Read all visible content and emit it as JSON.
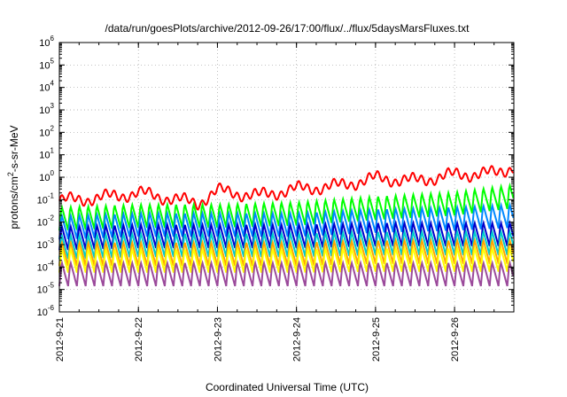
{
  "chart_data": {
    "type": "line",
    "title": "/data/run/goesPlots/archive/2012-09-26/17:00/flux/../flux/5daysMarsFluxes.txt",
    "xlabel": "Coordinated Universal Time (UTC)",
    "ylabel": {
      "pre": "protons/cm",
      "sup": "2",
      "post": "-s-sr-MeV"
    },
    "yscale": "log",
    "ylim": [
      1e-06,
      1000000.0
    ],
    "y_ticks": [
      {
        "exp": "-6"
      },
      {
        "exp": "-5"
      },
      {
        "exp": "-4"
      },
      {
        "exp": "-3"
      },
      {
        "exp": "-2"
      },
      {
        "exp": "-1"
      },
      {
        "exp": "0"
      },
      {
        "exp": "1"
      },
      {
        "exp": "2"
      },
      {
        "exp": "3"
      },
      {
        "exp": "4"
      },
      {
        "exp": "5"
      },
      {
        "exp": "6"
      }
    ],
    "y_tick_base": "10",
    "xlim": [
      "2012-09-21T00:00",
      "2012-09-26T18:00"
    ],
    "x_ticks": [
      "2012-9-21",
      "2012-9-22",
      "2012-9-23",
      "2012-9-24",
      "2012-9-25",
      "2012-9-26"
    ],
    "grid": true,
    "legend": "none",
    "sawtooth_cycles_per_day": 9,
    "series": [
      {
        "color": "#ff0000",
        "values": [
          {
            "x": "2012-09-21T00:00",
            "y": 0.09
          },
          {
            "x": "2012-09-21T12:00",
            "y": 0.12
          },
          {
            "x": "2012-09-22T00:00",
            "y": 0.2
          },
          {
            "x": "2012-09-22T12:00",
            "y": 0.1
          },
          {
            "x": "2012-09-22T18:00",
            "y": 0.07
          },
          {
            "x": "2012-09-23T00:00",
            "y": 0.25
          },
          {
            "x": "2012-09-23T12:00",
            "y": 0.15
          },
          {
            "x": "2012-09-24T00:00",
            "y": 0.3
          },
          {
            "x": "2012-09-24T12:00",
            "y": 0.4
          },
          {
            "x": "2012-09-25T00:00",
            "y": 0.9
          },
          {
            "x": "2012-09-25T12:00",
            "y": 0.7
          },
          {
            "x": "2012-09-26T00:00",
            "y": 1.3
          },
          {
            "x": "2012-09-26T12:00",
            "y": 1.5
          },
          {
            "x": "2012-09-26T18:00",
            "y": 3.0
          }
        ]
      },
      {
        "color": "#00ff00",
        "values": [
          {
            "x": "2012-09-21T00:00",
            "y": 0.015
          },
          {
            "x": "2012-09-22T00:00",
            "y": 0.02
          },
          {
            "x": "2012-09-23T00:00",
            "y": 0.02
          },
          {
            "x": "2012-09-24T00:00",
            "y": 0.025
          },
          {
            "x": "2012-09-25T00:00",
            "y": 0.045
          },
          {
            "x": "2012-09-26T00:00",
            "y": 0.07
          },
          {
            "x": "2012-09-26T18:00",
            "y": 0.15
          }
        ]
      },
      {
        "color": "#0088ff",
        "values": [
          {
            "x": "2012-09-21T00:00",
            "y": 0.006
          },
          {
            "x": "2012-09-22T00:00",
            "y": 0.008
          },
          {
            "x": "2012-09-23T00:00",
            "y": 0.008
          },
          {
            "x": "2012-09-24T00:00",
            "y": 0.008
          },
          {
            "x": "2012-09-25T00:00",
            "y": 0.012
          },
          {
            "x": "2012-09-26T00:00",
            "y": 0.015
          },
          {
            "x": "2012-09-26T18:00",
            "y": 0.02
          }
        ]
      },
      {
        "color": "#0000cc",
        "values": [
          {
            "x": "2012-09-21T00:00",
            "y": 0.002
          },
          {
            "x": "2012-09-22T00:00",
            "y": 0.0025
          },
          {
            "x": "2012-09-23T00:00",
            "y": 0.0025
          },
          {
            "x": "2012-09-24T00:00",
            "y": 0.0025
          },
          {
            "x": "2012-09-25T00:00",
            "y": 0.003
          },
          {
            "x": "2012-09-26T00:00",
            "y": 0.003
          },
          {
            "x": "2012-09-26T18:00",
            "y": 0.003
          }
        ]
      },
      {
        "color": "#00cccc",
        "values": [
          {
            "x": "2012-09-21T00:00",
            "y": 0.0008
          },
          {
            "x": "2012-09-22T00:00",
            "y": 0.001
          },
          {
            "x": "2012-09-23T00:00",
            "y": 0.001
          },
          {
            "x": "2012-09-24T00:00",
            "y": 0.001
          },
          {
            "x": "2012-09-25T00:00",
            "y": 0.0012
          },
          {
            "x": "2012-09-26T00:00",
            "y": 0.0012
          },
          {
            "x": "2012-09-26T18:00",
            "y": 0.0012
          }
        ]
      },
      {
        "color": "#ffa500",
        "values": [
          {
            "x": "2012-09-21T00:00",
            "y": 0.0004
          },
          {
            "x": "2012-09-22T00:00",
            "y": 0.0004
          },
          {
            "x": "2012-09-23T00:00",
            "y": 0.0004
          },
          {
            "x": "2012-09-24T00:00",
            "y": 0.0004
          },
          {
            "x": "2012-09-25T00:00",
            "y": 0.0005
          },
          {
            "x": "2012-09-26T00:00",
            "y": 0.0005
          },
          {
            "x": "2012-09-26T18:00",
            "y": 0.0005
          }
        ]
      },
      {
        "color": "#ffff00",
        "values": [
          {
            "x": "2012-09-21T00:00",
            "y": 0.0002
          },
          {
            "x": "2012-09-22T00:00",
            "y": 0.0002
          },
          {
            "x": "2012-09-23T00:00",
            "y": 0.0002
          },
          {
            "x": "2012-09-24T00:00",
            "y": 0.0002
          },
          {
            "x": "2012-09-25T00:00",
            "y": 0.00022
          },
          {
            "x": "2012-09-26T00:00",
            "y": 0.00022
          },
          {
            "x": "2012-09-26T18:00",
            "y": 0.00022
          }
        ]
      },
      {
        "color": "#9b4a9b",
        "values": [
          {
            "x": "2012-09-21T00:00",
            "y": 5e-05
          },
          {
            "x": "2012-09-22T00:00",
            "y": 5e-05
          },
          {
            "x": "2012-09-23T00:00",
            "y": 5e-05
          },
          {
            "x": "2012-09-24T00:00",
            "y": 5e-05
          },
          {
            "x": "2012-09-25T00:00",
            "y": 5e-05
          },
          {
            "x": "2012-09-26T00:00",
            "y": 5e-05
          },
          {
            "x": "2012-09-26T18:00",
            "y": 5e-05
          }
        ]
      }
    ]
  }
}
